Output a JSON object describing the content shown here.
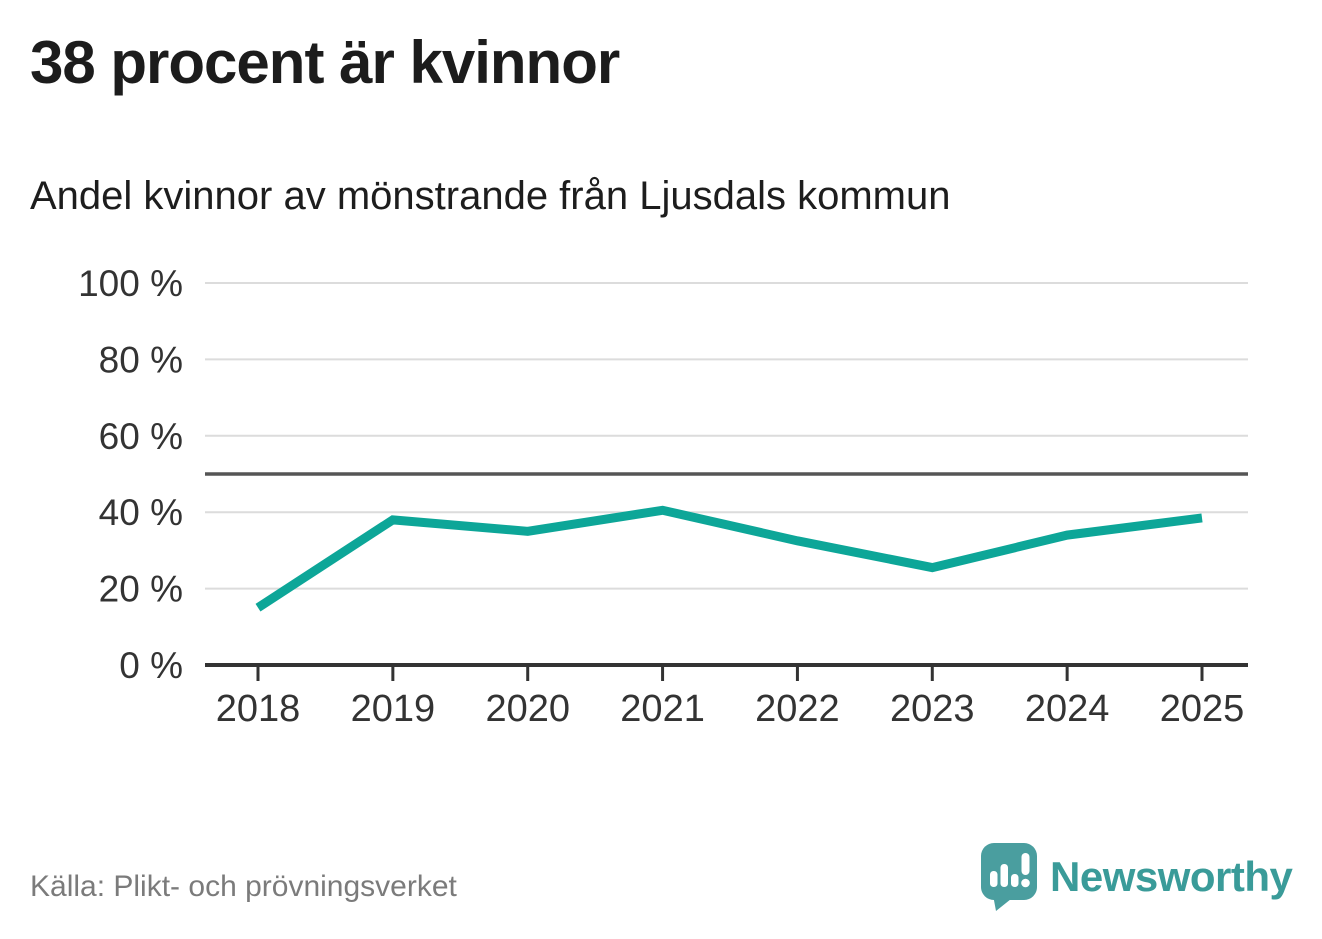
{
  "header": {
    "title": "38 procent är kvinnor",
    "subtitle": "Andel kvinnor av mönstrande från Ljusdals kommun"
  },
  "chart_data": {
    "type": "line",
    "title": "38 procent är kvinnor",
    "subtitle": "Andel kvinnor av mönstrande från Ljusdals kommun",
    "x": [
      2018,
      2019,
      2020,
      2021,
      2022,
      2023,
      2024,
      2025
    ],
    "xtick_labels": [
      "2018",
      "2019",
      "2020",
      "2021",
      "2022",
      "2023",
      "2024",
      "2025"
    ],
    "series": [
      {
        "name": "Andel kvinnor av mönstrande",
        "values": [
          15,
          38,
          35,
          40.5,
          32.5,
          25.5,
          34,
          38.5
        ]
      }
    ],
    "unit": "%",
    "ylim": [
      0,
      100
    ],
    "yticks": [
      0,
      20,
      40,
      60,
      80,
      100
    ],
    "ytick_labels": [
      "0 %",
      "20 %",
      "40 %",
      "60 %",
      "80 %",
      "100 %"
    ],
    "reference_line": 50,
    "grid": true,
    "legend": "none",
    "line_color": "#0da698",
    "reference_line_color": "#555555",
    "axis_color": "#333333",
    "grid_color": "#dcdcdc",
    "label_color": "#333333"
  },
  "footer": {
    "source": "Källa: Plikt- och prövningsverket",
    "brand": "Newsworthy",
    "brand_color": "#3a9b99",
    "logo_color": "#4a9e9f"
  }
}
